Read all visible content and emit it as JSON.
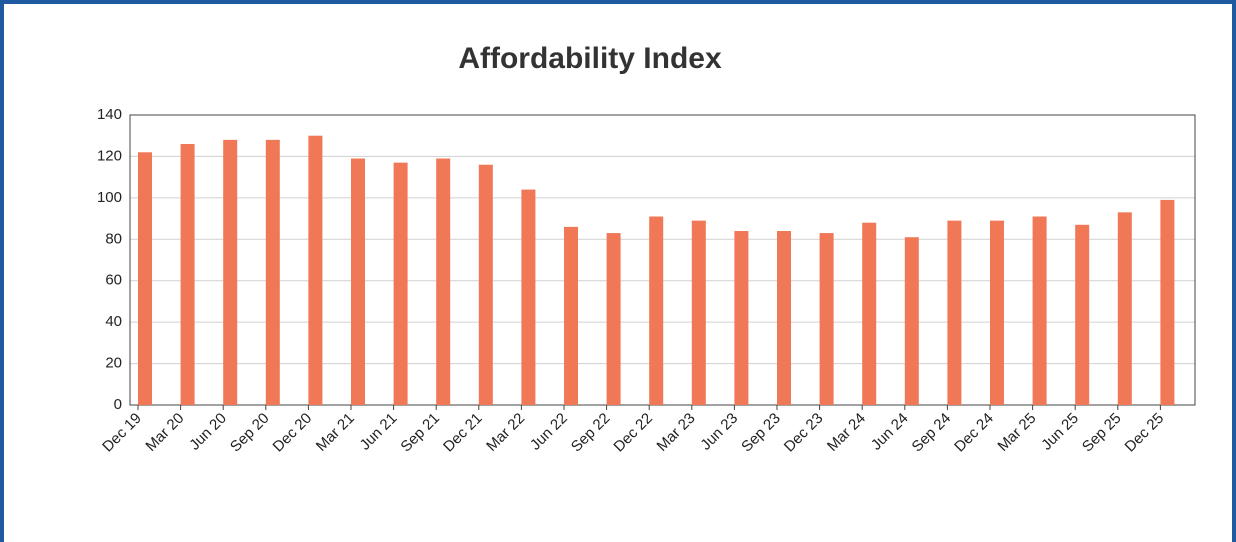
{
  "chart_data": {
    "type": "bar",
    "title": "Affordability Index",
    "categories": [
      "Dec 19",
      "Mar 20",
      "Jun 20",
      "Sep 20",
      "Dec 20",
      "Mar 21",
      "Jun 21",
      "Sep 21",
      "Dec 21",
      "Mar 22",
      "Jun 22",
      "Sep 22",
      "Dec 22",
      "Mar 23",
      "Jun 23",
      "Sep 23",
      "Dec 23",
      "Mar 24",
      "Jun 24",
      "Sep 24",
      "Dec 24",
      "Mar 25",
      "Jun 25",
      "Sep 25",
      "Dec 25"
    ],
    "values": [
      122,
      126,
      128,
      128,
      130,
      119,
      117,
      119,
      116,
      104,
      86,
      83,
      91,
      89,
      84,
      84,
      83,
      88,
      81,
      89,
      89,
      91,
      87,
      93,
      99
    ],
    "color": "#f07857",
    "ylim": [
      0,
      140
    ],
    "yticks": [
      0,
      20,
      40,
      60,
      80,
      100,
      120,
      140
    ],
    "grid": true
  }
}
